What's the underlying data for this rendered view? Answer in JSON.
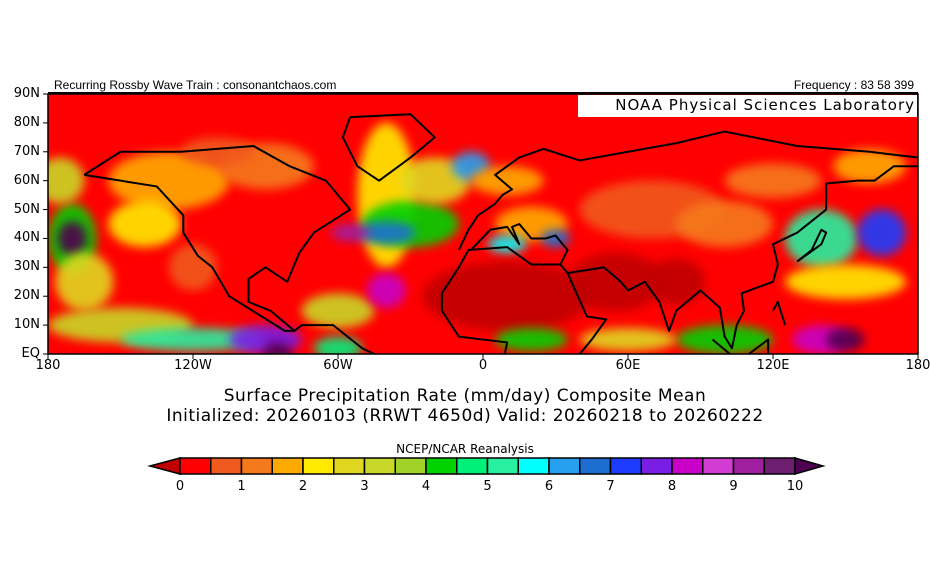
{
  "header": {
    "left": "Recurring Rossby Wave Train : consonantchaos.com",
    "right": "Frequency : 83 58 399"
  },
  "lab_label": "NOAA Physical Sciences Laboratory",
  "lat_labels": [
    "90N",
    "80N",
    "70N",
    "60N",
    "50N",
    "40N",
    "30N",
    "20N",
    "10N",
    "EQ"
  ],
  "lon_labels": [
    "180",
    "120W",
    "60W",
    "0",
    "60E",
    "120E",
    "180"
  ],
  "title_line1": "Surface Precipitation Rate (mm/day) Composite Mean",
  "title_line2": "Initialized: 20260103 (RRWT 4650d) Valid: 20260218 to 20260222",
  "source": "NCEP/NCAR Reanalysis",
  "colorbar": {
    "labels": [
      "0",
      "1",
      "2",
      "3",
      "4",
      "5",
      "6",
      "7",
      "8",
      "9",
      "10"
    ],
    "under_color": "#c00000",
    "over_color": "#500050",
    "colors": [
      "#ff0000",
      "#f05a1e",
      "#f57a1e",
      "#ffaa00",
      "#ffea00",
      "#e0d820",
      "#c8d828",
      "#a0d228",
      "#00d200",
      "#00f07a",
      "#28f0a0",
      "#00ffff",
      "#28a0f0",
      "#1e6ed2",
      "#1e3cff",
      "#7a1ee6",
      "#c800c8",
      "#d23cd2",
      "#a01ea0",
      "#6e1e6e"
    ]
  }
}
